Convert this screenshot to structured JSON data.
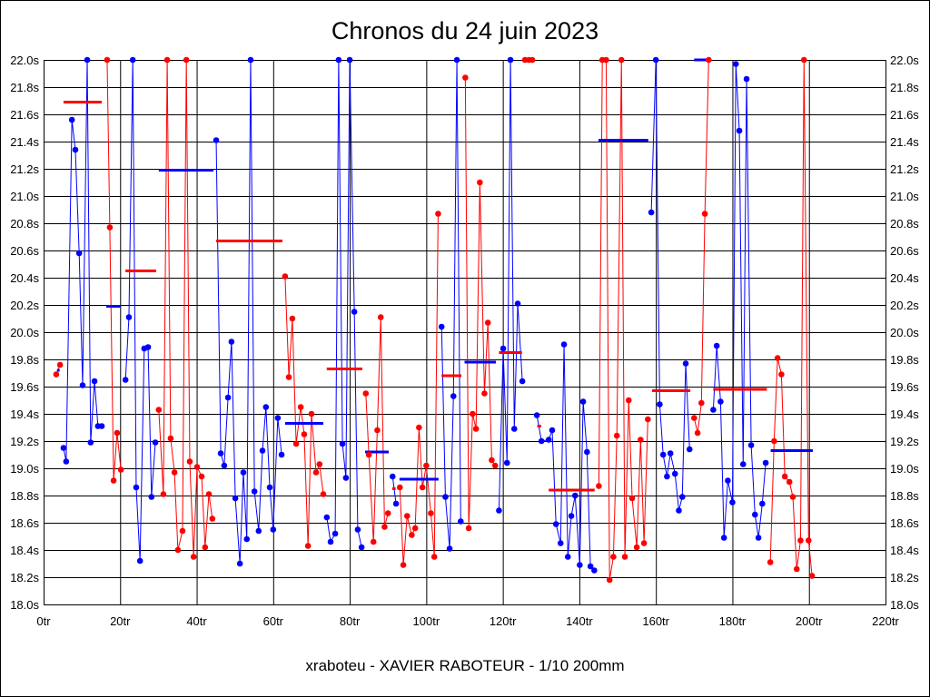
{
  "chart_data": {
    "type": "line",
    "title": "Chronos du 24 juin 2023",
    "xlabel": "xraboteu - XAVIER RABOTEUR - 1/10 200mm",
    "ylabel": "",
    "xlim": [
      0,
      220
    ],
    "ylim": [
      18.0,
      22.0
    ],
    "x_ticks": [
      0,
      20,
      40,
      60,
      80,
      100,
      120,
      140,
      160,
      180,
      200,
      220
    ],
    "x_tick_suffix": "tr",
    "y_ticks": [
      18.0,
      18.2,
      18.4,
      18.6,
      18.8,
      19.0,
      19.2,
      19.4,
      19.6,
      19.8,
      20.0,
      20.2,
      20.4,
      20.6,
      20.8,
      21.0,
      21.2,
      21.4,
      21.6,
      21.8,
      22.0
    ],
    "y_tick_suffix": "s",
    "grid": true,
    "colors": {
      "red": "#ff0000",
      "blue": "#0000ff",
      "grid": "#000000"
    },
    "series": [
      {
        "color": "red",
        "points": [
          [
            3.3,
            19.69
          ],
          [
            4.3,
            19.76
          ]
        ]
      },
      {
        "color": "blue",
        "points": [
          [
            5.2,
            19.15
          ],
          [
            5.9,
            19.05
          ],
          [
            7.4,
            21.56
          ],
          [
            8.3,
            21.34
          ],
          [
            9.3,
            20.58
          ],
          [
            10.2,
            19.61
          ],
          [
            11.4,
            22.0
          ],
          [
            12.3,
            19.19
          ],
          [
            13.3,
            19.64
          ],
          [
            14.2,
            19.31
          ],
          [
            15.2,
            19.31
          ]
        ]
      },
      {
        "color": "red",
        "points": [
          [
            16.6,
            22.0
          ],
          [
            17.3,
            20.77
          ],
          [
            18.3,
            18.91
          ],
          [
            19.2,
            19.26
          ],
          [
            20.2,
            18.99
          ]
        ]
      },
      {
        "color": "blue",
        "points": [
          [
            21.4,
            19.65
          ],
          [
            22.3,
            20.11
          ],
          [
            23.3,
            22.0
          ],
          [
            24.2,
            18.86
          ],
          [
            25.2,
            18.32
          ],
          [
            26.3,
            19.88
          ],
          [
            27.3,
            19.89
          ],
          [
            28.2,
            18.79
          ],
          [
            29.2,
            19.19
          ]
        ]
      },
      {
        "color": "red",
        "points": [
          [
            30.1,
            19.43
          ],
          [
            31.3,
            18.81
          ],
          [
            32.3,
            22.0
          ],
          [
            33.2,
            19.22
          ],
          [
            34.2,
            18.97
          ],
          [
            35.1,
            18.4
          ],
          [
            36.3,
            18.54
          ],
          [
            37.3,
            22.0
          ],
          [
            38.2,
            19.05
          ],
          [
            39.2,
            18.35
          ],
          [
            40.1,
            19.01
          ],
          [
            41.3,
            18.94
          ],
          [
            42.2,
            18.42
          ],
          [
            43.2,
            18.81
          ],
          [
            44.1,
            18.63
          ]
        ]
      },
      {
        "color": "blue",
        "points": [
          [
            45.1,
            21.41
          ],
          [
            46.3,
            19.11
          ],
          [
            47.2,
            19.02
          ],
          [
            48.2,
            19.52
          ],
          [
            49.1,
            19.93
          ],
          [
            50.1,
            18.78
          ],
          [
            51.3,
            18.3
          ],
          [
            52.2,
            18.97
          ],
          [
            53.1,
            18.48
          ],
          [
            54.1,
            22.0
          ],
          [
            55.1,
            18.83
          ],
          [
            56.2,
            18.54
          ],
          [
            57.2,
            19.13
          ],
          [
            58.1,
            19.45
          ],
          [
            59.1,
            18.86
          ],
          [
            60.0,
            18.55
          ],
          [
            61.2,
            19.37
          ],
          [
            62.2,
            19.1
          ]
        ]
      },
      {
        "color": "red",
        "points": [
          [
            63.1,
            20.41
          ],
          [
            64.1,
            19.67
          ],
          [
            65.0,
            20.1
          ],
          [
            66.0,
            19.18
          ],
          [
            67.2,
            19.45
          ],
          [
            68.1,
            19.25
          ],
          [
            69.1,
            18.43
          ],
          [
            70.0,
            19.4
          ],
          [
            71.2,
            18.97
          ],
          [
            72.1,
            19.03
          ],
          [
            73.1,
            18.81
          ]
        ]
      },
      {
        "color": "blue",
        "points": [
          [
            74.0,
            18.64
          ],
          [
            75.0,
            18.46
          ],
          [
            76.2,
            18.52
          ],
          [
            77.1,
            22.0
          ],
          [
            78.1,
            19.18
          ],
          [
            79.0,
            18.93
          ],
          [
            80.0,
            22.0
          ],
          [
            81.2,
            20.15
          ],
          [
            82.1,
            18.55
          ],
          [
            83.1,
            18.42
          ]
        ]
      },
      {
        "color": "red",
        "points": [
          [
            84.2,
            19.55
          ],
          [
            85.0,
            19.1
          ],
          [
            86.2,
            18.46
          ],
          [
            87.2,
            19.28
          ],
          [
            88.1,
            20.11
          ],
          [
            89.1,
            18.57
          ],
          [
            90.0,
            18.67
          ]
        ]
      },
      {
        "color": "blue",
        "points": [
          [
            91.2,
            18.94
          ],
          [
            92.1,
            18.74
          ]
        ]
      },
      {
        "color": "red",
        "points": [
          [
            93.1,
            18.86
          ],
          [
            94.0,
            18.29
          ],
          [
            95.0,
            18.65
          ],
          [
            96.2,
            18.51
          ],
          [
            97.1,
            18.56
          ],
          [
            98.1,
            19.3
          ],
          [
            99.0,
            18.86
          ],
          [
            100.0,
            19.02
          ],
          [
            101.2,
            18.67
          ],
          [
            102.1,
            18.35
          ],
          [
            103.1,
            20.87
          ]
        ]
      },
      {
        "color": "blue",
        "points": [
          [
            104.0,
            20.04
          ],
          [
            105.0,
            18.79
          ],
          [
            106.1,
            18.41
          ],
          [
            107.1,
            19.53
          ],
          [
            108.0,
            22.0
          ],
          [
            109.0,
            18.61
          ]
        ]
      },
      {
        "color": "red",
        "points": [
          [
            110.2,
            21.87
          ],
          [
            111.1,
            18.56
          ],
          [
            112.1,
            19.4
          ],
          [
            113.0,
            19.29
          ],
          [
            114.0,
            21.1
          ],
          [
            115.2,
            19.55
          ],
          [
            116.1,
            20.07
          ],
          [
            117.1,
            19.06
          ],
          [
            118.0,
            19.02
          ]
        ]
      },
      {
        "color": "blue",
        "points": [
          [
            119.0,
            18.69
          ],
          [
            120.1,
            19.88
          ],
          [
            121.1,
            19.04
          ],
          [
            122.0,
            22.0
          ],
          [
            123.0,
            19.29
          ],
          [
            123.9,
            20.21
          ],
          [
            125.1,
            19.64
          ]
        ]
      },
      {
        "color": "red",
        "points": [
          [
            125.8,
            22.0
          ],
          [
            126.8,
            22.0
          ],
          [
            127.7,
            22.0
          ]
        ]
      },
      {
        "color": "blue",
        "points": [
          [
            128.9,
            19.39
          ],
          [
            130.1,
            19.2
          ],
          [
            132.0,
            19.21
          ],
          [
            132.9,
            19.28
          ],
          [
            133.9,
            18.59
          ],
          [
            135.1,
            18.45
          ],
          [
            136.0,
            19.91
          ],
          [
            137.0,
            18.35
          ],
          [
            137.9,
            18.65
          ],
          [
            138.9,
            18.8
          ],
          [
            140.1,
            18.29
          ],
          [
            141.0,
            19.49
          ],
          [
            142.0,
            19.12
          ],
          [
            142.9,
            18.28
          ],
          [
            143.9,
            18.25
          ]
        ]
      },
      {
        "color": "red",
        "points": [
          [
            145.1,
            18.87
          ],
          [
            146.0,
            22.0
          ],
          [
            147.0,
            22.0
          ],
          [
            147.9,
            18.18
          ],
          [
            148.9,
            18.35
          ],
          [
            149.8,
            19.24
          ],
          [
            151.0,
            22.0
          ],
          [
            151.9,
            18.35
          ],
          [
            152.9,
            19.5
          ],
          [
            153.8,
            18.78
          ],
          [
            155.0,
            18.42
          ],
          [
            156.0,
            19.21
          ],
          [
            156.9,
            18.45
          ],
          [
            157.9,
            19.36
          ]
        ]
      },
      {
        "color": "blue",
        "points": [
          [
            158.8,
            20.88
          ],
          [
            160.0,
            22.0
          ],
          [
            161.0,
            19.47
          ],
          [
            161.9,
            19.1
          ],
          [
            162.9,
            18.94
          ],
          [
            163.8,
            19.11
          ],
          [
            165.0,
            18.96
          ],
          [
            166.0,
            18.69
          ],
          [
            166.9,
            18.79
          ],
          [
            167.8,
            19.77
          ],
          [
            168.8,
            19.14
          ]
        ]
      },
      {
        "color": "red",
        "points": [
          [
            170.0,
            19.37
          ],
          [
            170.9,
            19.26
          ],
          [
            171.9,
            19.48
          ],
          [
            172.8,
            20.87
          ],
          [
            173.8,
            22.0
          ]
        ]
      },
      {
        "color": "blue",
        "points": [
          [
            175.0,
            19.43
          ],
          [
            175.9,
            19.9
          ],
          [
            176.9,
            19.49
          ],
          [
            177.8,
            18.49
          ],
          [
            178.8,
            18.91
          ],
          [
            180.0,
            18.75
          ],
          [
            180.9,
            21.97
          ],
          [
            181.8,
            21.48
          ],
          [
            182.8,
            19.03
          ],
          [
            183.7,
            21.86
          ],
          [
            184.9,
            19.17
          ],
          [
            185.9,
            18.66
          ],
          [
            186.8,
            18.49
          ],
          [
            187.8,
            18.74
          ],
          [
            188.7,
            19.04
          ]
        ]
      },
      {
        "color": "red",
        "points": [
          [
            189.9,
            18.31
          ],
          [
            190.9,
            19.2
          ],
          [
            191.8,
            19.81
          ],
          [
            192.8,
            19.69
          ],
          [
            193.7,
            18.94
          ],
          [
            194.9,
            18.9
          ],
          [
            195.8,
            18.79
          ],
          [
            196.8,
            18.26
          ],
          [
            197.8,
            18.47
          ],
          [
            198.7,
            22.0
          ],
          [
            199.9,
            18.47
          ],
          [
            200.8,
            18.21
          ]
        ]
      }
    ],
    "averages": [
      {
        "color": "blue",
        "from": 3.5,
        "to": 4.2,
        "value": 19.72
      },
      {
        "color": "red",
        "from": 5.2,
        "to": 15.2,
        "value": 21.69
      },
      {
        "color": "blue",
        "from": 16.4,
        "to": 20.2,
        "value": 20.19
      },
      {
        "color": "red",
        "from": 21.4,
        "to": 29.4,
        "value": 20.45
      },
      {
        "color": "blue",
        "from": 30.1,
        "to": 44.4,
        "value": 21.19
      },
      {
        "color": "red",
        "from": 45.1,
        "to": 62.4,
        "value": 20.67
      },
      {
        "color": "blue",
        "from": 63.1,
        "to": 73.1,
        "value": 19.33
      },
      {
        "color": "red",
        "from": 74.0,
        "to": 83.3,
        "value": 19.73
      },
      {
        "color": "blue",
        "from": 84.0,
        "to": 90.2,
        "value": 19.12
      },
      {
        "color": "red",
        "from": 91.1,
        "to": 92.0,
        "value": 18.85
      },
      {
        "color": "blue",
        "from": 93.0,
        "to": 103.2,
        "value": 18.92
      },
      {
        "color": "red",
        "from": 104.0,
        "to": 109.2,
        "value": 19.68
      },
      {
        "color": "blue",
        "from": 110.0,
        "to": 118.2,
        "value": 19.78
      },
      {
        "color": "red",
        "from": 119.0,
        "to": 125.0,
        "value": 19.85
      },
      {
        "color": "blue",
        "from": 126.8,
        "to": 127.7,
        "value": 22.0
      },
      {
        "color": "red",
        "from": 129.0,
        "to": 130.0,
        "value": 19.31
      },
      {
        "color": "red",
        "from": 132.0,
        "to": 144.0,
        "value": 18.84
      },
      {
        "color": "blue",
        "from": 145.0,
        "to": 158.0,
        "value": 21.41
      },
      {
        "color": "red",
        "from": 159.0,
        "to": 169.0,
        "value": 19.57
      },
      {
        "color": "blue",
        "from": 170.0,
        "to": 174.0,
        "value": 22.0
      },
      {
        "color": "red",
        "from": 175.0,
        "to": 189.0,
        "value": 19.58
      },
      {
        "color": "blue",
        "from": 190.0,
        "to": 201.0,
        "value": 19.13
      }
    ]
  }
}
